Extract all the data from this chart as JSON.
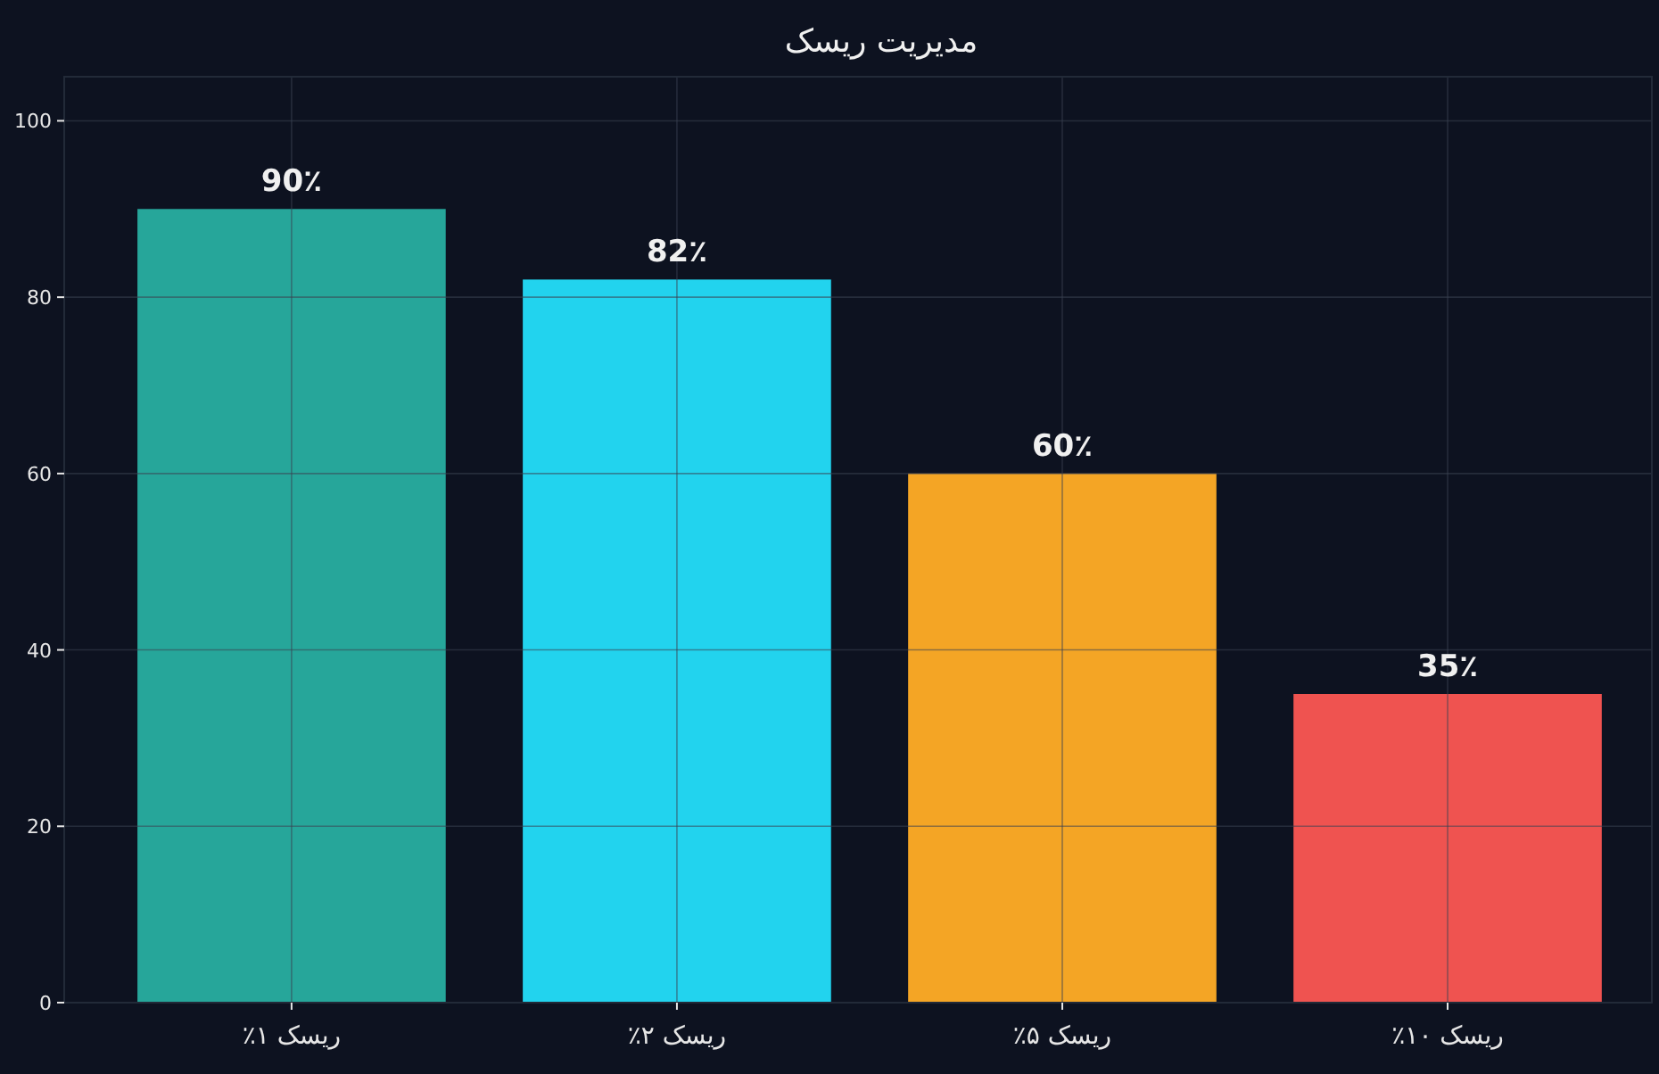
{
  "chart_data": {
    "type": "bar",
    "title": "مدیریت ریسک",
    "categories": [
      "ریسک ۱٪",
      "ریسک ۲٪",
      "ریسک ۵٪",
      "ریسک ۱۰٪"
    ],
    "values": [
      90,
      82,
      60,
      35
    ],
    "colors": [
      "#26a69a",
      "#22d3ee",
      "#f4a525",
      "#ef5350"
    ],
    "value_labels": [
      "90٪",
      "82٪",
      "60٪",
      "35٪"
    ],
    "ylim": [
      0,
      105
    ],
    "yticks": [
      0,
      20,
      40,
      60,
      80,
      100
    ],
    "grid": true
  }
}
